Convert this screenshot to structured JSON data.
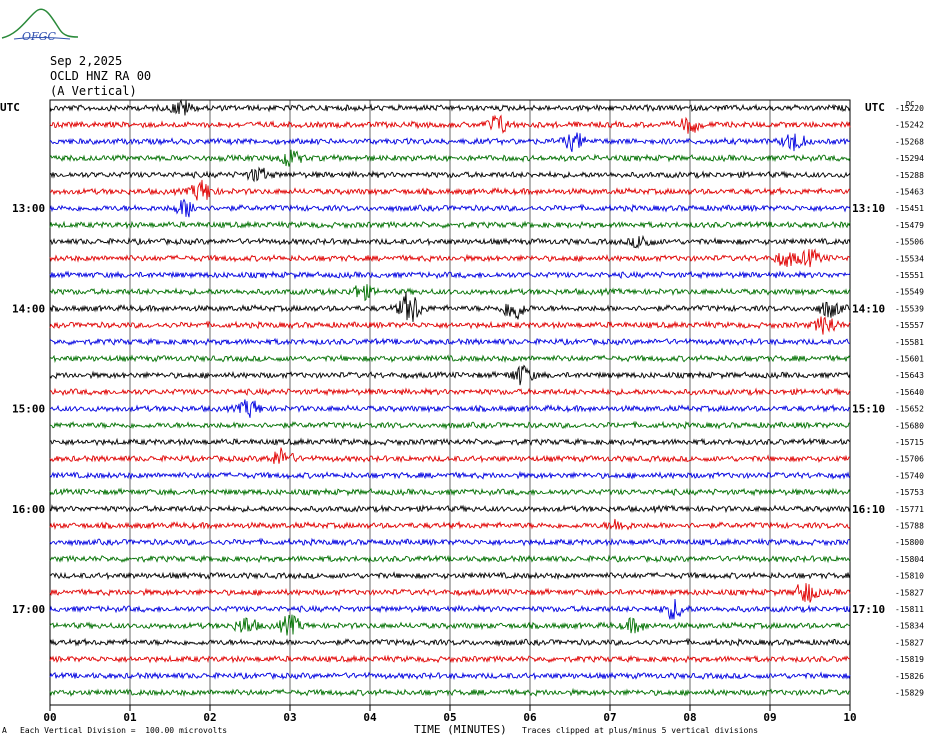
{
  "header": {
    "logo_text": "OFGC",
    "date": "Sep 2,2025",
    "station": "OCLD HNZ RA 00",
    "component": "(A Vertical)"
  },
  "footer": {
    "xlabel": "TIME (MINUTES)",
    "scale_note": "Each Vertical Division =  100.00 microvolts",
    "clip_note": "Traces clipped at plus/minus 5 vertical divisions",
    "corner_mark": "A"
  },
  "colors": [
    "#000000",
    "#e00000",
    "#0000e0",
    "#007000"
  ],
  "chart_data": {
    "type": "line",
    "title": "",
    "xlabel": "TIME (MINUTES)",
    "xlim": [
      0,
      10
    ],
    "x_ticks": [
      "00",
      "01",
      "02",
      "03",
      "04",
      "05",
      "06",
      "07",
      "08",
      "09",
      "10"
    ],
    "left_unit_label": "UTC",
    "right_unit_label": "UTC",
    "dc_label": "DC",
    "left_time_labels": [
      {
        "row": 6,
        "label": "13:00"
      },
      {
        "row": 12,
        "label": "14:00"
      },
      {
        "row": 18,
        "label": "15:00"
      },
      {
        "row": 24,
        "label": "16:00"
      },
      {
        "row": 30,
        "label": "17:00"
      }
    ],
    "right_time_labels": [
      {
        "row": 6,
        "label": "13:10"
      },
      {
        "row": 12,
        "label": "14:10"
      },
      {
        "row": 18,
        "label": "15:10"
      },
      {
        "row": 24,
        "label": "16:10"
      },
      {
        "row": 30,
        "label": "17:10"
      }
    ],
    "dc_offsets": [
      "-15220",
      "-15242",
      "-15268",
      "-15294",
      "-15288",
      "-15463",
      "-15451",
      "-15479",
      "-15506",
      "-15534",
      "-15551",
      "-15549",
      "-15539",
      "-15557",
      "-15581",
      "-15601",
      "-15643",
      "-15640",
      "-15652",
      "-15680",
      "-15715",
      "-15706",
      "-15740",
      "-15753",
      "-15771",
      "-15788",
      "-15800",
      "-15804",
      "-15810",
      "-15827",
      "-15811",
      "-15834",
      "-15827",
      "-15819",
      "-15826",
      "-15829"
    ],
    "row_count": 36,
    "events": [
      {
        "row": 0,
        "x": 1.65,
        "amp": 0.7
      },
      {
        "row": 1,
        "x": 5.6,
        "amp": 0.9
      },
      {
        "row": 1,
        "x": 8.0,
        "amp": 0.7
      },
      {
        "row": 2,
        "x": 6.55,
        "amp": 0.8
      },
      {
        "row": 2,
        "x": 9.3,
        "amp": 0.9
      },
      {
        "row": 3,
        "x": 3.0,
        "amp": 0.8
      },
      {
        "row": 4,
        "x": 2.6,
        "amp": 0.6
      },
      {
        "row": 5,
        "x": 1.9,
        "amp": 1.0
      },
      {
        "row": 6,
        "x": 1.7,
        "amp": 0.8
      },
      {
        "row": 8,
        "x": 7.4,
        "amp": 0.6
      },
      {
        "row": 9,
        "x": 9.2,
        "amp": 0.7
      },
      {
        "row": 9,
        "x": 9.5,
        "amp": 0.7
      },
      {
        "row": 11,
        "x": 3.9,
        "amp": 0.7
      },
      {
        "row": 12,
        "x": 4.5,
        "amp": 1.6
      },
      {
        "row": 12,
        "x": 5.8,
        "amp": 1.2
      },
      {
        "row": 12,
        "x": 9.75,
        "amp": 0.8
      },
      {
        "row": 13,
        "x": 9.7,
        "amp": 0.9
      },
      {
        "row": 16,
        "x": 5.9,
        "amp": 0.9
      },
      {
        "row": 18,
        "x": 2.5,
        "amp": 0.8
      },
      {
        "row": 21,
        "x": 2.9,
        "amp": 0.9
      },
      {
        "row": 25,
        "x": 7.1,
        "amp": 0.5
      },
      {
        "row": 29,
        "x": 9.45,
        "amp": 1.0
      },
      {
        "row": 30,
        "x": 7.8,
        "amp": 0.9
      },
      {
        "row": 31,
        "x": 2.45,
        "amp": 0.8
      },
      {
        "row": 31,
        "x": 3.0,
        "amp": 0.9
      },
      {
        "row": 31,
        "x": 7.3,
        "amp": 0.6
      }
    ]
  }
}
